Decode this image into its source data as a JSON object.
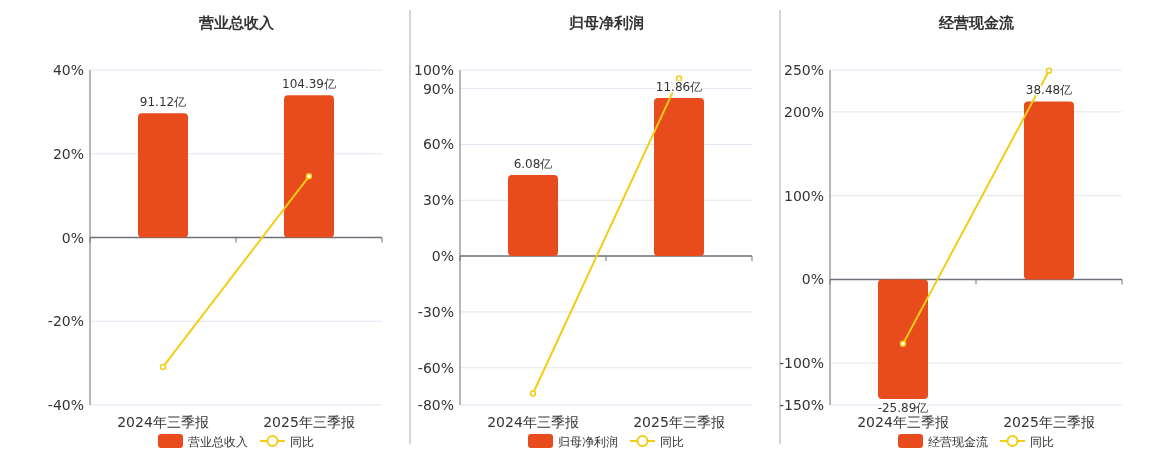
{
  "chart_data": [
    {
      "type": "bar",
      "title": "营业总收入",
      "categories": [
        "2024年三季报",
        "2025年三季报"
      ],
      "legend": "bottom",
      "grid": "y",
      "marker": "circle",
      "series": [
        {
          "name": "营业总收入",
          "axis": "y2",
          "color": "#e84c1d",
          "values": [
            91.12,
            104.39
          ],
          "value_labels": [
            "91.12亿",
            "104.39亿"
          ]
        },
        {
          "name": "同比",
          "type": "line",
          "color": "#f2cd16",
          "values": [
            -30.9,
            14.6
          ]
        }
      ],
      "ylim": [
        -40,
        40
      ],
      "yticks": [
        {
          "value": -40,
          "label": "-40%"
        },
        {
          "value": -20,
          "label": "-20%"
        },
        {
          "value": 0,
          "label": "0%"
        },
        {
          "value": 20,
          "label": "20%"
        },
        {
          "value": 40,
          "label": "40%"
        }
      ]
    },
    {
      "type": "bar",
      "title": "归母净利润",
      "categories": [
        "2024年三季报",
        "2025年三季报"
      ],
      "legend": "bottom",
      "grid": "y",
      "marker": "circle",
      "series": [
        {
          "name": "归母净利润",
          "axis": "y2",
          "color": "#e84c1d",
          "values": [
            6.08,
            11.86
          ],
          "value_labels": [
            "6.08亿",
            "11.86亿"
          ]
        },
        {
          "name": "同比",
          "type": "line",
          "color": "#f2cd16",
          "values": [
            -73.8,
            95.4
          ]
        }
      ],
      "ylim": [
        -80,
        100
      ],
      "yticks": [
        {
          "value": -80,
          "label": "-80%"
        },
        {
          "value": -60,
          "label": "-60%"
        },
        {
          "value": -30,
          "label": "-30%"
        },
        {
          "value": 0,
          "label": "0%"
        },
        {
          "value": 30,
          "label": "30%"
        },
        {
          "value": 60,
          "label": "60%"
        },
        {
          "value": 90,
          "label": "90%"
        },
        {
          "value": 100,
          "label": "100%"
        }
      ]
    },
    {
      "type": "bar",
      "title": "经营现金流",
      "categories": [
        "2024年三季报",
        "2025年三季报"
      ],
      "legend": "bottom",
      "grid": "y",
      "marker": "circle",
      "series": [
        {
          "name": "经营现金流",
          "axis": "y2",
          "color": "#e84c1d",
          "values": [
            -25.89,
            38.48
          ],
          "value_labels": [
            "-25.89亿",
            "38.48亿"
          ]
        },
        {
          "name": "同比",
          "type": "line",
          "color": "#f2cd16",
          "values": [
            -77,
            249
          ]
        }
      ],
      "ylim": [
        -150,
        250
      ],
      "yticks": [
        {
          "value": -150,
          "label": "-150%"
        },
        {
          "value": -100,
          "label": "-100%"
        },
        {
          "value": 0,
          "label": "0%"
        },
        {
          "value": 100,
          "label": "100%"
        },
        {
          "value": 200,
          "label": "200%"
        },
        {
          "value": 250,
          "label": "250%"
        }
      ]
    }
  ]
}
